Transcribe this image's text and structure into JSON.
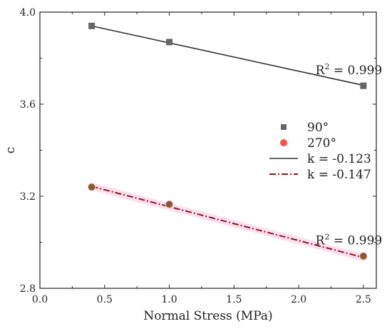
{
  "chart_data": {
    "type": "scatter",
    "xlabel": "Normal Stress (MPa)",
    "ylabel": "c",
    "xlim": [
      0.0,
      2.6
    ],
    "ylim": [
      2.8,
      4.0
    ],
    "xticks": [
      "0.0",
      "0.5",
      "1.0",
      "1.5",
      "2.0",
      "2.5"
    ],
    "yticks": [
      "2.8",
      "3.2",
      "3.6",
      "4.0"
    ],
    "grid": false,
    "legend_position": "right",
    "series": [
      {
        "name": "90°",
        "marker": "square",
        "color": "#666666",
        "x": [
          0.4,
          1.0,
          2.5
        ],
        "y": [
          3.94,
          3.87,
          3.68
        ]
      },
      {
        "name": "270°",
        "marker": "circle",
        "color": "#ff4d4d",
        "x": [
          0.4,
          1.0,
          2.5
        ],
        "y": [
          3.24,
          3.165,
          2.94
        ]
      }
    ],
    "fits": [
      {
        "name": "k = -0.123",
        "style": "solid",
        "color": "#333333",
        "x": [
          0.4,
          2.5
        ],
        "y": [
          3.94,
          3.682
        ]
      },
      {
        "name": "k = -0.147",
        "style": "dashdot",
        "color": "#8b1a1a",
        "x": [
          0.4,
          2.5
        ],
        "y": [
          3.243,
          2.934
        ]
      }
    ],
    "annotations": [
      {
        "text": "R",
        "sup": "2",
        "rest": " = 0.999",
        "x": 2.13,
        "y": 3.73
      },
      {
        "text": "R",
        "sup": "2",
        "rest": " = 0.999",
        "x": 2.13,
        "y": 2.99
      }
    ]
  }
}
